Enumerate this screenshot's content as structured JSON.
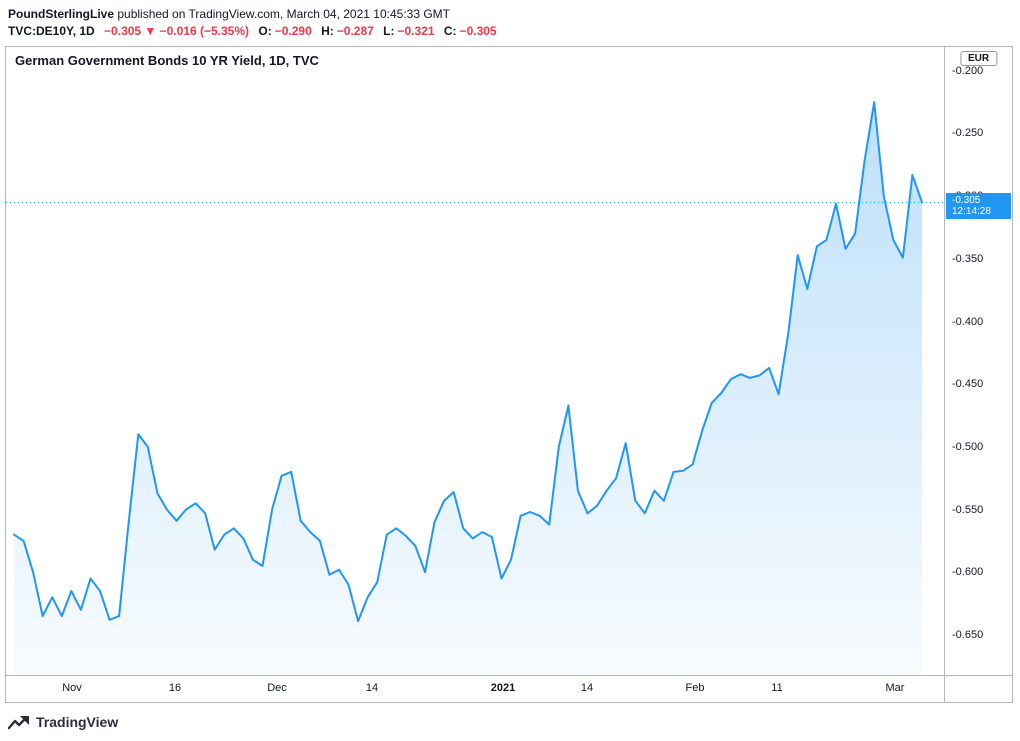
{
  "header": {
    "publisher": "PoundSterlingLive",
    "published_suffix": " published on TradingView.com, March 04, 2021 10:45:33 GMT",
    "symbol": "TVC:DE10Y, 1D",
    "change": "−0.305 ▼ −0.016 (−5.35%)",
    "ohlc": [
      {
        "label": "O:",
        "value": "−0.290"
      },
      {
        "label": "H:",
        "value": "−0.287"
      },
      {
        "label": "L:",
        "value": "−0.321"
      },
      {
        "label": "C:",
        "value": "−0.305"
      }
    ]
  },
  "chart": {
    "title": "German Government Bonds 10 YR Yield, 1D, TVC",
    "currency": "EUR"
  },
  "colors": {
    "accent_blue": "#2196f3",
    "negative_red": "#f23645",
    "axis_border": "#b2b5be"
  },
  "footer": {
    "brand": "TradingView"
  },
  "chart_data": {
    "type": "area",
    "title": "German Government Bonds 10 YR Yield, 1D, TVC",
    "symbol": "TVC:DE10Y",
    "timeframe": "1D",
    "unit": "EUR",
    "line_color": "#2196f3",
    "grid": false,
    "legend_position": "none",
    "ylim": [
      -0.682,
      -0.181
    ],
    "y_ticks": [
      -0.2,
      -0.25,
      -0.3,
      -0.35,
      -0.4,
      -0.45,
      -0.5,
      -0.55,
      -0.6,
      -0.65
    ],
    "x_labels": [
      {
        "label": "Nov",
        "pos": 0.07,
        "bold": false
      },
      {
        "label": "16",
        "pos": 0.18,
        "bold": false
      },
      {
        "label": "Dec",
        "pos": 0.289,
        "bold": false
      },
      {
        "label": "14",
        "pos": 0.39,
        "bold": false
      },
      {
        "label": "2021",
        "pos": 0.53,
        "bold": true
      },
      {
        "label": "14",
        "pos": 0.619,
        "bold": false
      },
      {
        "label": "Feb",
        "pos": 0.735,
        "bold": false
      },
      {
        "label": "11",
        "pos": 0.822,
        "bold": false
      },
      {
        "label": "Mar",
        "pos": 0.948,
        "bold": false
      }
    ],
    "current_value": -0.305,
    "current_label": "-0.305",
    "countdown": "12:14:28",
    "values": [
      -0.57,
      -0.575,
      -0.6,
      -0.635,
      -0.62,
      -0.635,
      -0.615,
      -0.63,
      -0.605,
      -0.615,
      -0.638,
      -0.635,
      -0.56,
      -0.49,
      -0.5,
      -0.537,
      -0.55,
      -0.559,
      -0.55,
      -0.545,
      -0.553,
      -0.582,
      -0.57,
      -0.565,
      -0.573,
      -0.59,
      -0.595,
      -0.55,
      -0.523,
      -0.52,
      -0.559,
      -0.568,
      -0.575,
      -0.602,
      -0.598,
      -0.61,
      -0.639,
      -0.62,
      -0.608,
      -0.57,
      -0.565,
      -0.571,
      -0.579,
      -0.6,
      -0.56,
      -0.543,
      -0.536,
      -0.565,
      -0.573,
      -0.568,
      -0.572,
      -0.605,
      -0.59,
      -0.555,
      -0.552,
      -0.555,
      -0.562,
      -0.5,
      -0.467,
      -0.535,
      -0.553,
      -0.547,
      -0.535,
      -0.525,
      -0.497,
      -0.543,
      -0.553,
      -0.535,
      -0.543,
      -0.52,
      -0.519,
      -0.514,
      -0.487,
      -0.465,
      -0.457,
      -0.446,
      -0.442,
      -0.445,
      -0.443,
      -0.437,
      -0.458,
      -0.41,
      -0.347,
      -0.374,
      -0.34,
      -0.335,
      -0.306,
      -0.342,
      -0.33,
      -0.271,
      -0.225,
      -0.3,
      -0.335,
      -0.349,
      -0.283,
      -0.305
    ]
  }
}
